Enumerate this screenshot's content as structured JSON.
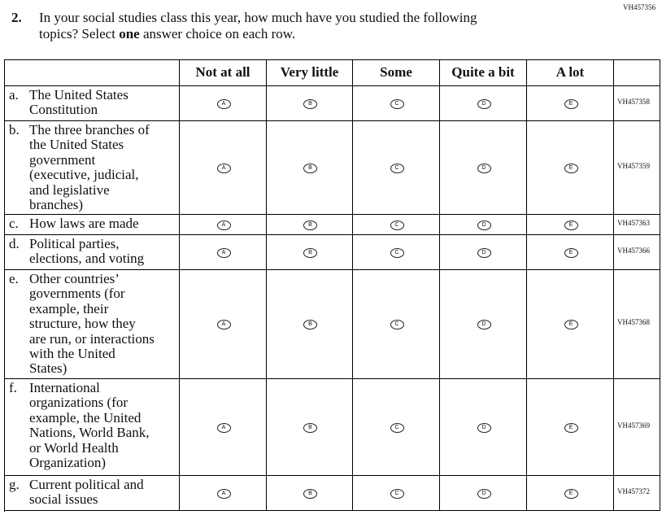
{
  "form_code": "VH457356",
  "question": {
    "number": "2.",
    "line1": "In your social studies class this year, how much have you studied the following",
    "line2_before": "topics? Select ",
    "line2_emphasis": "one",
    "line2_after": " answer choice on each row."
  },
  "columns": [
    "Not at all",
    "Very little",
    "Some",
    "Quite a bit",
    "A lot"
  ],
  "bubbles": [
    "A",
    "B",
    "C",
    "D",
    "E"
  ],
  "rows": [
    {
      "letter": "a.",
      "lines": [
        "The United States",
        "Constitution"
      ],
      "code": "VH457358"
    },
    {
      "letter": "b.",
      "lines": [
        "The three branches of",
        "the United States",
        "government",
        "(executive, judicial,",
        "and legislative",
        "branches)"
      ],
      "code": "VH457359"
    },
    {
      "letter": "c.",
      "lines": [
        "How laws are made"
      ],
      "code": "VH457363"
    },
    {
      "letter": "d.",
      "lines": [
        "Political parties,",
        "elections, and voting"
      ],
      "code": "VH457366"
    },
    {
      "letter": "e.",
      "lines": [
        "Other countries’",
        "governments (for",
        "example, their",
        "structure, how they",
        "are run, or interactions",
        "with the United",
        "States)"
      ],
      "code": "VH457368"
    },
    {
      "letter": "f.",
      "lines": [
        "International",
        "organizations (for",
        "example, the United",
        "Nations, World Bank,",
        "or World Health",
        "Organization)"
      ],
      "code": "VH457369"
    },
    {
      "letter": "g.",
      "lines": [
        "Current political and",
        "social issues"
      ],
      "code": "VH457372"
    }
  ]
}
